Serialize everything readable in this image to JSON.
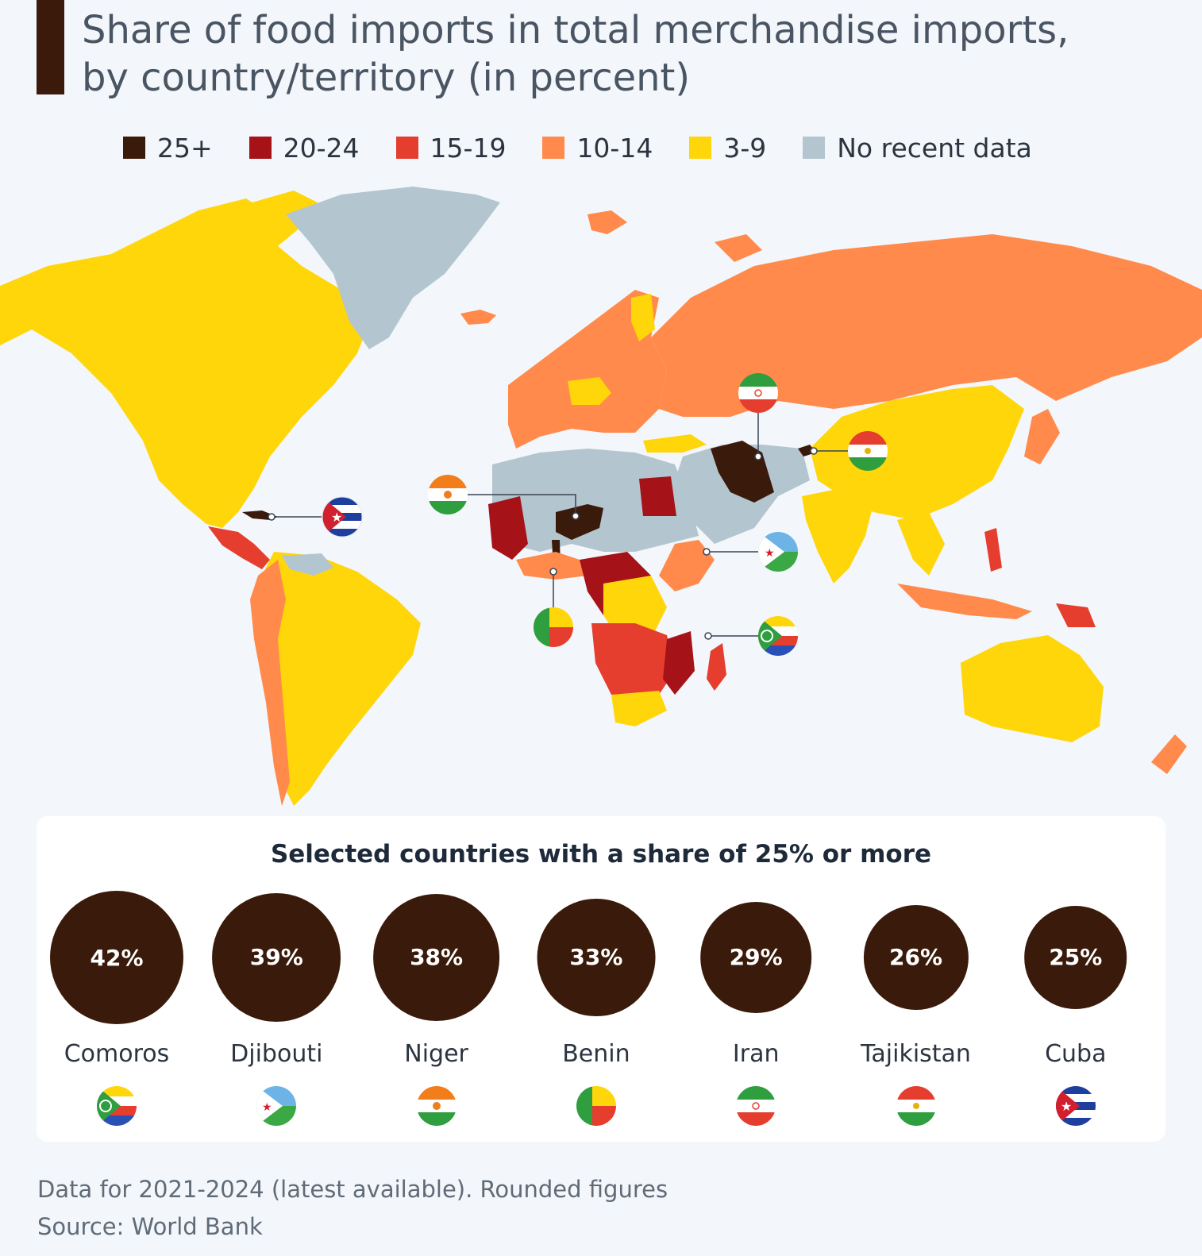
{
  "title": {
    "line1": "Share of food imports in total merchandise imports,",
    "line2": "by country/territory (in percent)"
  },
  "legend": [
    {
      "label": "25+",
      "color": "#3a1a0a"
    },
    {
      "label": "20-24",
      "color": "#a51218"
    },
    {
      "label": "15-19",
      "color": "#e53e2e"
    },
    {
      "label": "10-14",
      "color": "#ff8a4b"
    },
    {
      "label": "3-9",
      "color": "#ffd60a"
    },
    {
      "label": "No recent data",
      "color": "#b3c5cf"
    }
  ],
  "panel": {
    "title": "Selected countries with a share of 25% or more",
    "countries": [
      {
        "name": "Comoros",
        "value": "42%",
        "share": 42
      },
      {
        "name": "Djibouti",
        "value": "39%",
        "share": 39
      },
      {
        "name": "Niger",
        "value": "38%",
        "share": 38
      },
      {
        "name": "Benin",
        "value": "33%",
        "share": 33
      },
      {
        "name": "Iran",
        "value": "29%",
        "share": 29
      },
      {
        "name": "Tajikistan",
        "value": "26%",
        "share": 26
      },
      {
        "name": "Cuba",
        "value": "25%",
        "share": 25
      }
    ]
  },
  "footnotes": {
    "note": "Data for 2021-2024 (latest available). Rounded figures",
    "source": "Source: World Bank"
  }
}
